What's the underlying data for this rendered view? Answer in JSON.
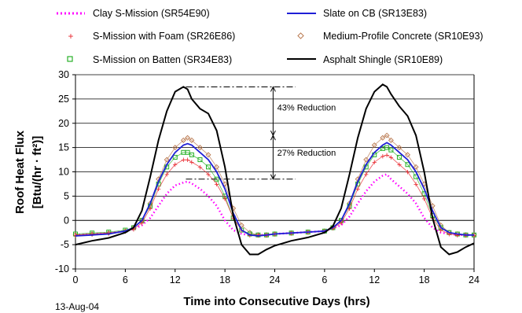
{
  "chart_data": {
    "type": "line",
    "xlabel": "Time into Consecutive Days (hrs)",
    "ylabel_line1": "Roof Heat Flux",
    "ylabel_line2": "[Btu/(hr · ft²)]",
    "date_label": "13-Aug-04",
    "ylim": [
      -10,
      30
    ],
    "yticks": [
      "30",
      "25",
      "20",
      "15",
      "10",
      "5",
      "0",
      "-5",
      "-10"
    ],
    "xlim": [
      0,
      48
    ],
    "xtick_labels": [
      "0",
      "6",
      "12",
      "18",
      "24",
      "6",
      "12",
      "18",
      "24"
    ],
    "grid": true,
    "legend_position": "top",
    "annotations": [
      {
        "text": "43% Reduction"
      },
      {
        "text": "27% Reduction"
      }
    ],
    "x": [
      0,
      2,
      4,
      6,
      7,
      8,
      9,
      10,
      11,
      12,
      13,
      13.5,
      14,
      15,
      16,
      17,
      18,
      19,
      20,
      21,
      22,
      23,
      24,
      26,
      28,
      30,
      31,
      32,
      33,
      34,
      35,
      36,
      37,
      37.5,
      38,
      39,
      40,
      41,
      42,
      43,
      44,
      45,
      46,
      47,
      48
    ],
    "series": [
      {
        "name": "Clay S-Mission (SR54E90)",
        "color": "#ff00ff",
        "style": "dotted",
        "values": [
          -3,
          -2.8,
          -2.6,
          -2.2,
          -1.8,
          -1,
          0.5,
          3,
          5.5,
          7.2,
          7.8,
          8,
          7.6,
          6.5,
          5,
          3,
          0,
          -2,
          -2.8,
          -3,
          -3,
          -3,
          -2.8,
          -2.6,
          -2.4,
          -2.2,
          -1.6,
          -1,
          0.8,
          3.5,
          6,
          8,
          9.2,
          9.5,
          8.5,
          7,
          5.5,
          3.5,
          0.5,
          -1.5,
          -2.5,
          -2.8,
          -3,
          -3,
          -3
        ]
      },
      {
        "name": "Slate on CB (SR13E83)",
        "color": "#1f1fd6",
        "style": "solid",
        "values": [
          -3.2,
          -3,
          -2.8,
          -2.2,
          -1.5,
          0,
          3.5,
          8,
          11.5,
          14,
          15.5,
          15.8,
          15.5,
          14,
          12.5,
          10,
          6.5,
          1.5,
          -2,
          -3,
          -3.2,
          -3,
          -2.8,
          -2.6,
          -2.4,
          -2.2,
          -1.5,
          0,
          3.5,
          8,
          11.5,
          14,
          15.5,
          16,
          15.5,
          14,
          12.5,
          10,
          6.5,
          2,
          -1.5,
          -2.5,
          -2.8,
          -3,
          -3
        ]
      },
      {
        "name": "S-Mission with Foam (SR26E86)",
        "color": "#e8262c",
        "style": "markers-plus",
        "values": [
          -3,
          -2.8,
          -2.6,
          -2.2,
          -1.8,
          -0.5,
          2.5,
          6.5,
          9.5,
          11.5,
          12.5,
          12.5,
          12,
          11,
          9.5,
          7.5,
          4.5,
          0.5,
          -2,
          -3,
          -3,
          -3,
          -2.8,
          -2.6,
          -2.4,
          -2.2,
          -1.6,
          -0.5,
          2.5,
          6.5,
          9.5,
          12,
          13.2,
          13.5,
          13,
          11.5,
          10,
          7.5,
          4.5,
          0.5,
          -2,
          -2.8,
          -3,
          -3,
          -3
        ]
      },
      {
        "name": "Medium-Profile Concrete (SR10E93)",
        "color": "#b9784e",
        "style": "markers-diamond",
        "values": [
          -3,
          -2.8,
          -2.6,
          -2.2,
          -1.5,
          0,
          3.5,
          8.5,
          12.5,
          15,
          16.5,
          17,
          16.5,
          15,
          13.5,
          11,
          7.5,
          2.5,
          -1,
          -2.5,
          -3,
          -3,
          -2.8,
          -2.6,
          -2.4,
          -2.2,
          -1.5,
          0,
          3.5,
          8.5,
          12.5,
          15.5,
          17,
          17.5,
          16.5,
          15,
          13.5,
          11,
          7.5,
          3,
          -1,
          -2.5,
          -2.8,
          -3,
          -3
        ]
      },
      {
        "name": "S-Mission on Batten (SR34E83)",
        "color": "#28b128",
        "style": "markers-square",
        "values": [
          -2.8,
          -2.6,
          -2.4,
          -2,
          -1.5,
          0,
          3,
          7.5,
          11,
          13,
          14,
          14,
          13.5,
          12.5,
          11,
          8.5,
          5,
          0.5,
          -2,
          -2.8,
          -3,
          -3,
          -2.8,
          -2.6,
          -2.4,
          -2.2,
          -1.5,
          0,
          3,
          7.5,
          11,
          13.5,
          14.8,
          15,
          14.5,
          13,
          11.5,
          9,
          5.5,
          1,
          -1.5,
          -2.5,
          -2.8,
          -3,
          -3
        ]
      },
      {
        "name": "Asphalt Shingle (SR10E89)",
        "color": "#000000",
        "style": "solid",
        "values": [
          -5,
          -4.2,
          -3.6,
          -2.5,
          -1.5,
          2,
          9,
          16.5,
          22.5,
          26.5,
          27.5,
          27,
          25,
          23,
          22,
          18.5,
          11,
          1,
          -5,
          -7,
          -7,
          -6,
          -5.2,
          -4.2,
          -3.5,
          -2.5,
          -1.2,
          2.5,
          9.5,
          17,
          23,
          26.5,
          28,
          27.5,
          26,
          23.5,
          21.5,
          17.5,
          10,
          0.5,
          -5.5,
          -7,
          -6.5,
          -5.5,
          -4.7
        ]
      }
    ]
  }
}
